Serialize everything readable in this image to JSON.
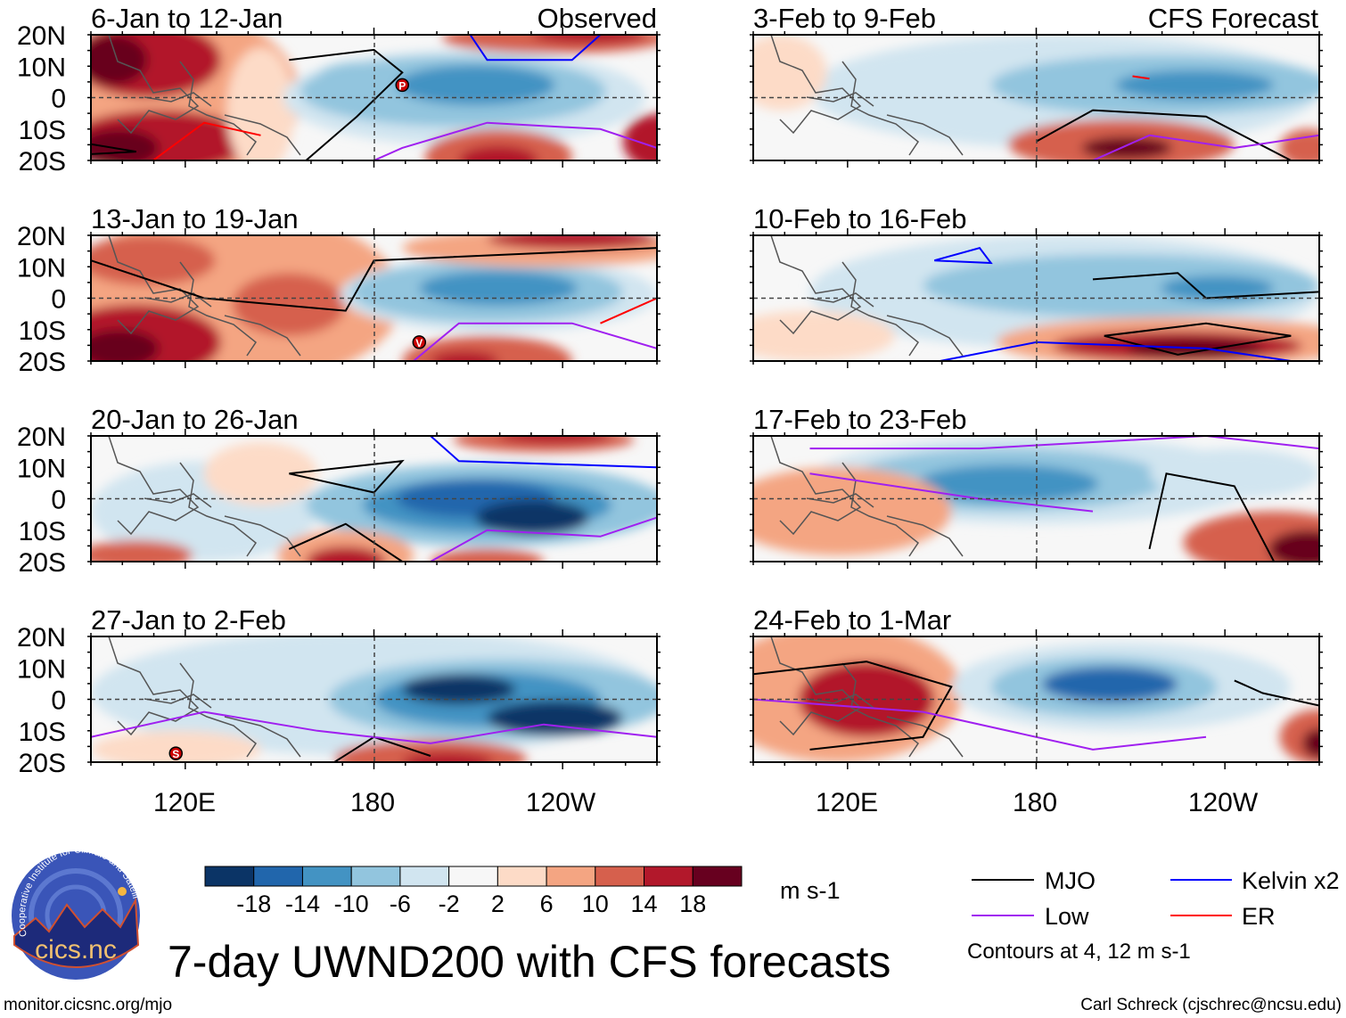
{
  "title": "7-day UWND200 with CFS forecasts",
  "footer": {
    "left": "monitor.cicsnc.org/mjo",
    "right": "Carl Schreck (cjschrec@ncsu.edu)"
  },
  "logo": {
    "text": "cics.nc",
    "ring_text": "Cooperative Institute for Climate and Satellites"
  },
  "column_labels": {
    "observed": "Observed",
    "forecast": "CFS Forecast"
  },
  "panels": {
    "observed": [
      {
        "title": "6-Jan to 12-Jan",
        "storms": [
          "P"
        ]
      },
      {
        "title": "13-Jan to 19-Jan",
        "storms": [
          "V"
        ]
      },
      {
        "title": "20-Jan to 26-Jan",
        "storms": []
      },
      {
        "title": "27-Jan to 2-Feb",
        "storms": [
          "S"
        ]
      }
    ],
    "forecast": [
      {
        "title": "3-Feb to 9-Feb"
      },
      {
        "title": "10-Feb to 16-Feb"
      },
      {
        "title": "17-Feb to 23-Feb"
      },
      {
        "title": "24-Feb to 1-Mar"
      }
    ]
  },
  "chart_data": {
    "type": "heatmap",
    "variable": "7-day UWND200",
    "units": "m s-1",
    "lat_ticks": [
      "20N",
      "10N",
      "0",
      "10S",
      "20S"
    ],
    "lat_range": [
      -20,
      20
    ],
    "lon_ticks": [
      "120E",
      "180",
      "120W"
    ],
    "lon_range": [
      90,
      270
    ],
    "colorbar": {
      "levels": [
        "-18",
        "-14",
        "-10",
        "-6",
        "-2",
        "2",
        "6",
        "10",
        "14",
        "18"
      ],
      "colors": [
        "#0b3466",
        "#2166ac",
        "#4393c3",
        "#92c5de",
        "#d1e5f0",
        "#f7f7f7",
        "#fddbc7",
        "#f4a582",
        "#d6604d",
        "#b2182b",
        "#67001f"
      ]
    },
    "legend": [
      {
        "name": "MJO",
        "color": "#000000"
      },
      {
        "name": "Kelvin x2",
        "color": "#0000ff"
      },
      {
        "name": "Low",
        "color": "#a020f0"
      },
      {
        "name": "ER",
        "color": "#ff0000"
      }
    ],
    "contour_note": "Contours at 4, 12 m s-1"
  }
}
